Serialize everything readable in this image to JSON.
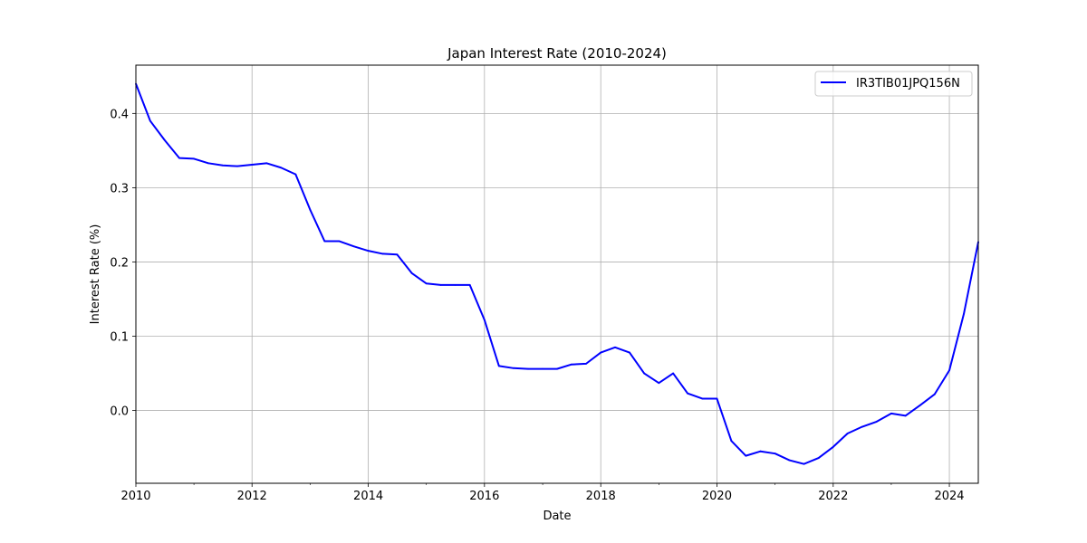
{
  "chart_data": {
    "type": "line",
    "title": "Japan Interest Rate (2010-2024)",
    "xlabel": "Date",
    "ylabel": "Interest Rate (%)",
    "xlim": [
      "2010-01-01",
      "2024-07-01"
    ],
    "ylim": [
      -0.098,
      0.465
    ],
    "xticks": [
      {
        "value": "2010-01-01",
        "label": "2010"
      },
      {
        "value": "2012-01-01",
        "label": "2012"
      },
      {
        "value": "2014-01-01",
        "label": "2014"
      },
      {
        "value": "2016-01-01",
        "label": "2016"
      },
      {
        "value": "2018-01-01",
        "label": "2018"
      },
      {
        "value": "2020-01-01",
        "label": "2020"
      },
      {
        "value": "2022-01-01",
        "label": "2022"
      },
      {
        "value": "2024-01-01",
        "label": "2024"
      }
    ],
    "yticks": [
      {
        "value": 0.0,
        "label": "0.0"
      },
      {
        "value": 0.1,
        "label": "0.1"
      },
      {
        "value": 0.2,
        "label": "0.2"
      },
      {
        "value": 0.3,
        "label": "0.3"
      },
      {
        "value": 0.4,
        "label": "0.4"
      }
    ],
    "grid": true,
    "legend_position": "upper-right",
    "series": [
      {
        "name": "IR3TIB01JPQ156N",
        "color": "#0000ff",
        "x": [
          "2010-01-01",
          "2010-04-01",
          "2010-07-01",
          "2010-10-01",
          "2011-01-01",
          "2011-04-01",
          "2011-07-01",
          "2011-10-01",
          "2012-01-01",
          "2012-04-01",
          "2012-07-01",
          "2012-10-01",
          "2013-01-01",
          "2013-04-01",
          "2013-07-01",
          "2013-10-01",
          "2014-01-01",
          "2014-04-01",
          "2014-07-01",
          "2014-10-01",
          "2015-01-01",
          "2015-04-01",
          "2015-07-01",
          "2015-10-01",
          "2016-01-01",
          "2016-04-01",
          "2016-07-01",
          "2016-10-01",
          "2017-01-01",
          "2017-04-01",
          "2017-07-01",
          "2017-10-01",
          "2018-01-01",
          "2018-04-01",
          "2018-07-01",
          "2018-10-01",
          "2019-01-01",
          "2019-04-01",
          "2019-07-01",
          "2019-10-01",
          "2020-01-01",
          "2020-04-01",
          "2020-07-01",
          "2020-10-01",
          "2021-01-01",
          "2021-04-01",
          "2021-07-01",
          "2021-10-01",
          "2022-01-01",
          "2022-04-01",
          "2022-07-01",
          "2022-10-01",
          "2023-01-01",
          "2023-04-01",
          "2023-07-01",
          "2023-10-01",
          "2024-01-01",
          "2024-04-01",
          "2024-07-01"
        ],
        "values": [
          0.44,
          0.39,
          0.364,
          0.34,
          0.339,
          0.333,
          0.33,
          0.329,
          0.331,
          0.333,
          0.327,
          0.318,
          0.27,
          0.228,
          0.228,
          0.221,
          0.215,
          0.211,
          0.21,
          0.185,
          0.171,
          0.169,
          0.169,
          0.169,
          0.122,
          0.06,
          0.057,
          0.056,
          0.056,
          0.056,
          0.062,
          0.063,
          0.078,
          0.085,
          0.078,
          0.05,
          0.037,
          0.05,
          0.023,
          0.016,
          0.016,
          -0.041,
          -0.061,
          -0.055,
          -0.058,
          -0.067,
          -0.072,
          -0.064,
          -0.049,
          -0.031,
          -0.022,
          -0.015,
          -0.004,
          -0.007,
          0.007,
          0.022,
          0.054,
          0.13,
          0.227
        ]
      }
    ]
  }
}
